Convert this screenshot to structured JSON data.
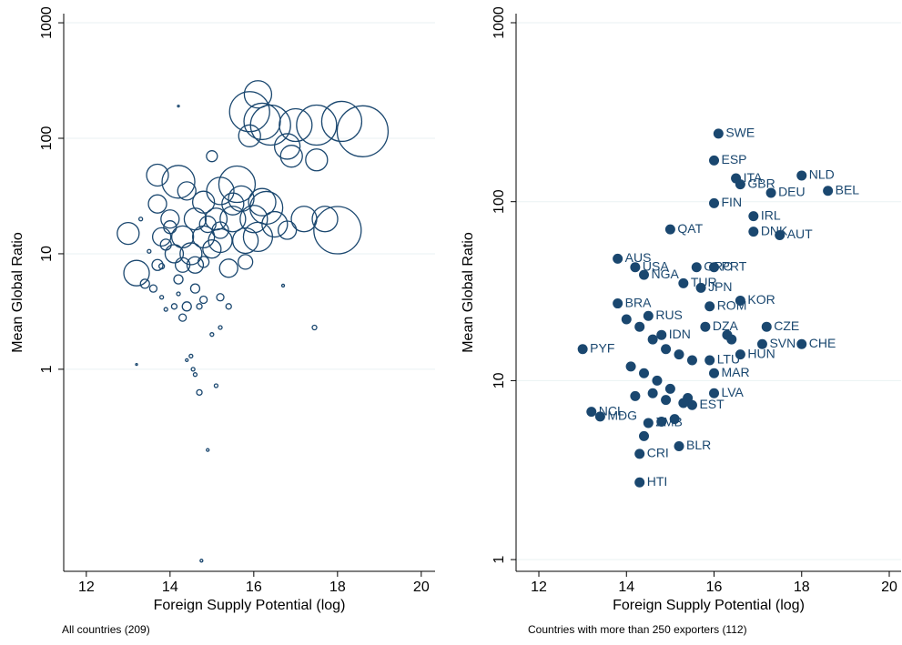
{
  "chart_data": [
    {
      "type": "bubble",
      "x_label": "Foreign Supply Potential (log)",
      "y_label": "Mean Global Ratio",
      "note": "All countries (209)",
      "xlim": [
        11.46,
        20.33
      ],
      "ylim": [
        0.0178,
        1200
      ],
      "ylog": true,
      "grid": true,
      "xticks": [
        12,
        14,
        16,
        18,
        20
      ],
      "yticks": [
        1,
        10,
        100,
        1000
      ],
      "color": "#1a476f",
      "x": [
        14.2,
        16.1,
        15.9,
        16.4,
        16.2,
        17.0,
        17.5,
        18.6,
        18.1,
        15.9,
        16.8,
        16.9,
        17.5,
        15.0,
        18.0,
        13.0,
        13.2,
        13.7,
        14.2,
        14.4,
        15.2,
        15.6,
        15.7,
        16.2,
        16.3,
        15.5,
        14.8,
        13.7,
        14.0,
        14.6,
        15.1,
        15.5,
        16.0,
        16.5,
        17.2,
        17.7,
        16.8,
        16.1,
        15.8,
        15.2,
        14.8,
        14.3,
        13.8,
        14.5,
        14.1,
        15.0,
        15.4,
        15.8,
        14.6,
        14.3,
        13.7,
        13.4,
        13.6,
        14.2,
        14.6,
        14.8,
        14.1,
        14.3,
        14.4,
        15.2,
        15.4,
        14.7,
        15.2,
        15.0,
        14.5,
        14.4,
        14.55,
        14.6,
        14.7,
        15.1,
        14.9,
        13.2,
        14.75,
        17.45,
        16.7,
        14.8,
        14.0,
        13.9,
        15.2,
        14.9,
        13.3,
        13.5,
        13.8,
        14.2,
        13.8,
        13.9
      ],
      "y": [
        190,
        240,
        170,
        130,
        140,
        130,
        130,
        115,
        140,
        105,
        85,
        70,
        65,
        70,
        16,
        15,
        6.8,
        48,
        42,
        35,
        35,
        40,
        30,
        28,
        25,
        27,
        28,
        27,
        20,
        20,
        20,
        20,
        20,
        18,
        20,
        20,
        16,
        14,
        13,
        13,
        14,
        14,
        14,
        10,
        10,
        11,
        7.5,
        8.5,
        8,
        8,
        8,
        5.5,
        5,
        6,
        5,
        4,
        3.5,
        2.8,
        3.5,
        4.2,
        3.5,
        3.5,
        2.3,
        2.0,
        1.3,
        1.2,
        1.0,
        0.9,
        0.63,
        0.72,
        0.2,
        1.1,
        0.022,
        2.3,
        5.3,
        8.5,
        17,
        12,
        16,
        18,
        20,
        10.5,
        7.8,
        4.5,
        4.2,
        3.3
      ],
      "sizes": [
        1,
        225,
        484,
        484,
        400,
        324,
        484,
        784,
        484,
        144,
        196,
        144,
        144,
        36,
        676,
        144,
        196,
        144,
        324,
        100,
        225,
        400,
        196,
        225,
        324,
        144,
        144,
        100,
        100,
        144,
        144,
        196,
        225,
        196,
        196,
        196,
        100,
        256,
        196,
        169,
        144,
        144,
        100,
        144,
        100,
        100,
        100,
        64,
        81,
        64,
        36,
        25,
        16,
        25,
        25,
        16,
        9,
        16,
        25,
        16,
        9,
        9,
        4,
        4,
        4,
        2.25,
        4,
        4,
        9,
        4,
        2.25,
        1,
        2.25,
        6.25,
        2.25,
        36,
        49,
        36,
        81,
        81,
        4,
        4,
        9,
        4,
        4,
        4
      ]
    },
    {
      "type": "labeled-scatter",
      "x_label": "Foreign Supply Potential (log)",
      "y_label": "Mean Global Ratio",
      "note": "Countries with more than 250 exporters (112)",
      "xlim": [
        11.48,
        20.27
      ],
      "ylim": [
        0.86,
        1124
      ],
      "ylog": true,
      "grid": true,
      "xticks": [
        12,
        14,
        16,
        18,
        20
      ],
      "yticks": [
        1,
        10,
        100,
        1000
      ],
      "color": "#1a476f",
      "labels": [
        "SWE",
        "ESP",
        "ITA",
        "GBR",
        "NLD",
        "BEL",
        "DEU",
        "FIN",
        "IRL",
        "DNK",
        "AUT",
        "QAT",
        "AUS",
        "USA",
        "PRT",
        "GRC",
        "NGA",
        "TUR",
        "JPN",
        "ROM",
        "KOR",
        "BRA",
        "RUS",
        "DZA",
        "CZE",
        "CHE",
        "SVN",
        "IDN",
        "PYF",
        "HUN",
        "LTU",
        "MAR",
        "LVA",
        "EST",
        "MDG",
        "NCL",
        "ZMB",
        "BLR",
        "CRI",
        "HTI",
        null,
        null,
        null,
        null,
        null,
        null,
        null,
        null,
        null,
        null,
        null,
        null,
        null,
        null,
        null,
        null,
        null,
        null,
        null,
        null
      ],
      "x": [
        16.1,
        16.0,
        16.5,
        16.6,
        18.0,
        18.6,
        17.3,
        16.0,
        16.9,
        16.9,
        17.5,
        15.0,
        13.8,
        14.2,
        16.0,
        15.6,
        14.4,
        15.3,
        15.7,
        15.9,
        16.6,
        13.8,
        14.5,
        15.8,
        17.2,
        18.0,
        17.1,
        14.8,
        13.0,
        16.6,
        15.9,
        16.0,
        16.0,
        15.5,
        13.4,
        13.2,
        14.5,
        15.2,
        14.3,
        14.3,
        14.0,
        14.3,
        14.6,
        14.9,
        15.2,
        15.5,
        14.1,
        14.4,
        14.7,
        15.0,
        15.4,
        14.6,
        14.9,
        15.3,
        14.2,
        14.8,
        15.1,
        16.3,
        16.4,
        14.4
      ],
      "y": [
        240,
        170,
        135,
        125,
        140,
        115,
        112,
        98,
        83,
        68,
        65,
        70,
        48,
        43,
        43,
        43,
        39,
        35,
        33,
        26,
        28,
        27,
        23,
        20,
        20,
        16,
        16,
        18,
        15,
        14,
        13,
        11,
        8.5,
        7.3,
        6.3,
        6.7,
        5.8,
        4.3,
        3.9,
        2.7,
        22,
        20,
        17,
        15,
        14,
        13,
        12,
        11,
        10,
        9,
        8,
        8.5,
        7.8,
        7.5,
        8.2,
        5.9,
        6.1,
        18,
        17,
        4.9
      ]
    }
  ]
}
